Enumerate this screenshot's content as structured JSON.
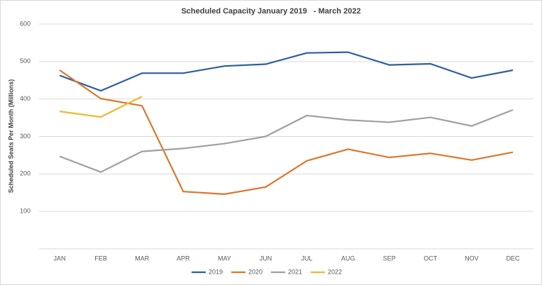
{
  "chart_data": {
    "type": "line",
    "title": "Scheduled Capacity January 2019   - March 2022",
    "ylabel": "Scheduled Seats Per Month (Millions)",
    "categories": [
      "JAN",
      "FEB",
      "MAR",
      "APR",
      "MAY",
      "JUN",
      "JUL",
      "AUG",
      "SEP",
      "OCT",
      "NOV",
      "DEC"
    ],
    "series": [
      {
        "name": "2019",
        "color": "#2e5fa3",
        "values": [
          463,
          422,
          469,
          469,
          488,
          493,
          523,
          525,
          491,
          494,
          456,
          477
        ]
      },
      {
        "name": "2020",
        "color": "#d9782d",
        "values": [
          477,
          401,
          382,
          153,
          146,
          165,
          235,
          266,
          244,
          255,
          237,
          258
        ]
      },
      {
        "name": "2021",
        "color": "#a0a0a0",
        "values": [
          247,
          205,
          260,
          268,
          281,
          300,
          356,
          344,
          338,
          351,
          328,
          371
        ]
      },
      {
        "name": "2022",
        "color": "#f1b82d",
        "values": [
          367,
          352,
          407,
          null,
          null,
          null,
          null,
          null,
          null,
          null,
          null,
          null
        ]
      }
    ],
    "ylim": [
      0,
      600
    ],
    "yticks": [
      100,
      200,
      300,
      400,
      500,
      600
    ],
    "grid": true,
    "legend": "bottom"
  }
}
